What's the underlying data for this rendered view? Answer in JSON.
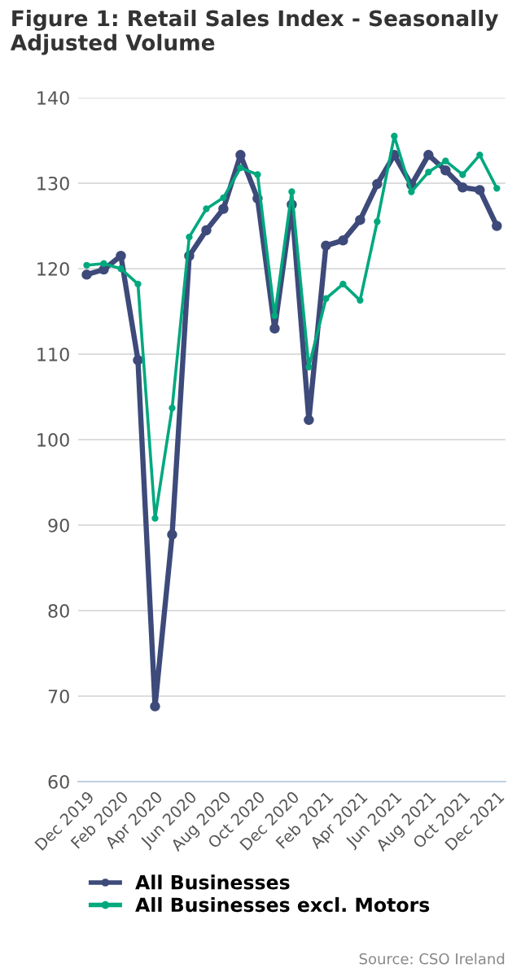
{
  "chart_data": {
    "type": "line",
    "title": "Figure 1: Retail Sales Index - Seasonally Adjusted Volume",
    "categories": [
      "Dec 2019",
      null,
      "Feb 2020",
      null,
      "Apr 2020",
      null,
      "Jun 2020",
      null,
      "Aug 2020",
      null,
      "Oct 2020",
      null,
      "Dec 2020",
      null,
      "Feb 2021",
      null,
      "Apr 2021",
      null,
      "Jun 2021",
      null,
      "Aug 2021",
      null,
      "Oct 2021",
      null,
      "Dec 2021"
    ],
    "series": [
      {
        "name": "All Businesses",
        "color": "#3d4a7a",
        "values": [
          119.3,
          119.9,
          121.5,
          109.3,
          68.8,
          88.9,
          121.5,
          124.5,
          127,
          133.3,
          128.2,
          113,
          127.5,
          102.3,
          122.7,
          123.3,
          125.7,
          129.9,
          133.3,
          129.8,
          133.3,
          131.5,
          129.5,
          129.2,
          125
        ]
      },
      {
        "name": "All Businesses excl. Motors",
        "color": "#00a87e",
        "values": [
          120.4,
          120.6,
          120,
          118.2,
          90.8,
          103.7,
          123.7,
          127,
          128.3,
          131.8,
          131,
          114.5,
          129,
          108.5,
          116.5,
          118.2,
          116.3,
          125.5,
          135.5,
          129,
          131.3,
          132.6,
          131,
          133.3,
          129.4
        ]
      }
    ],
    "ylim": [
      60,
      140
    ],
    "yticks": [
      60,
      70,
      80,
      90,
      100,
      110,
      120,
      130,
      140
    ],
    "grid": "y",
    "legend": "bottom",
    "marker": "circle",
    "line_style": "solid",
    "annotations": [
      "Source: CSO Ireland"
    ]
  }
}
